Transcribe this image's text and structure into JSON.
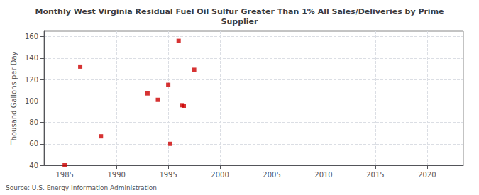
{
  "chart_data": {
    "type": "scatter",
    "title": "Monthly West Virginia Residual Fuel Oil Sulfur Greater Than 1% All Sales/Deliveries by Prime\nSupplier",
    "ylabel": "Thousand Gallons per Day",
    "annotation": "Source: U.S. Energy Information Administration",
    "x": [
      1985.0,
      1986.5,
      1988.5,
      1993.0,
      1994.0,
      1995.0,
      1995.2,
      1996.0,
      1996.3,
      1996.5,
      1997.5
    ],
    "values": [
      40,
      132,
      67,
      107,
      101,
      115,
      60,
      156,
      96,
      95,
      129
    ],
    "color": "#cc0000",
    "marker": "square",
    "xlim": [
      1983,
      2023.5
    ],
    "ylim": [
      40,
      165
    ],
    "xticks": [
      1985,
      1990,
      1995,
      2000,
      2005,
      2010,
      2015,
      2020
    ],
    "yticks": [
      40,
      60,
      80,
      100,
      120,
      140,
      160
    ],
    "grid": true
  }
}
